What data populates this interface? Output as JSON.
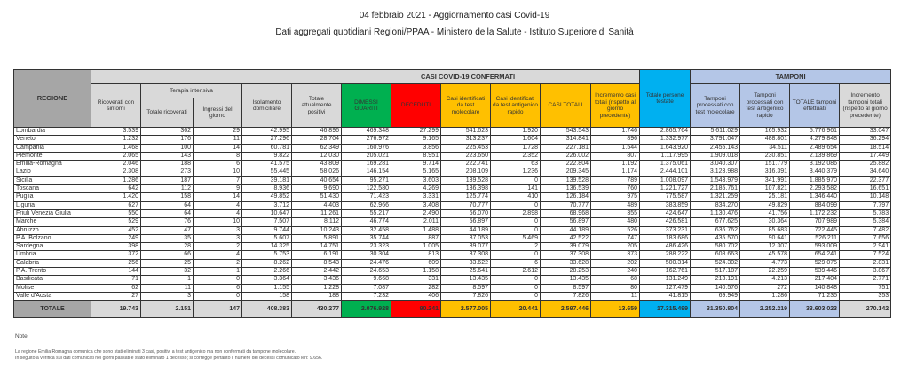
{
  "title": "04 febbraio 2021 - Aggiornamento casi Covid-19",
  "subtitle": "Dati aggregati quotidiani Regioni/PPAA - Ministero della Salute - Istituto Superiore di Sanità",
  "header": {
    "regione": "REGIONE",
    "casi_group": "CASI COVID-19 CONFERMATI",
    "tamponi_group": "TAMPONI",
    "terapia_group": "Terapia intensiva",
    "ricoverati": "Ricoverati con sintomi",
    "totale_ricoverati": "Totale ricoverati",
    "ingressi": "Ingressi del giorno",
    "isolamento": "Isolamento domiciliare",
    "totale_positivi": "Totale attualmente positivi",
    "dimessi": "DIMESSI GUARITI",
    "deceduti": "DECEDUTI",
    "casi_molecolare": "Casi identificati da test molecolare",
    "casi_antigenico": "Casi identificati da test antigenico rapido",
    "casi_totali": "CASI TOTALI",
    "incremento_casi": "Incremento casi totali (rispetto al giorno precedente)",
    "persone_testate": "Totale persone testate",
    "tamponi_molecolare": "Tamponi processati con test molecolare",
    "tamponi_antigenico": "Tamponi processati con test antigenico rapido",
    "totale_tamponi": "TOTALE tamponi effettuati",
    "incremento_tamponi": "Incremento tamponi totali (rispetto al giorno precedente)"
  },
  "rows": [
    [
      "Lombardia",
      "3.539",
      "362",
      "29",
      "42.995",
      "46.896",
      "469.348",
      "27.299",
      "541.623",
      "1.920",
      "543.543",
      "1.746",
      "2.865.764",
      "5.611.029",
      "165.932",
      "5.776.961",
      "33.047"
    ],
    [
      "Veneto",
      "1.232",
      "176",
      "11",
      "27.296",
      "28.704",
      "276.972",
      "9.165",
      "313.237",
      "1.604",
      "314.841",
      "896",
      "1.332.977",
      "3.791.047",
      "488.801",
      "4.279.848",
      "36.294"
    ],
    [
      "Campania",
      "1.468",
      "100",
      "14",
      "60.781",
      "62.349",
      "160.976",
      "3.856",
      "225.453",
      "1.728",
      "227.181",
      "1.544",
      "1.643.920",
      "2.455.143",
      "34.511",
      "2.489.654",
      "18.514"
    ],
    [
      "Piemonte",
      "2.065",
      "143",
      "8",
      "9.822",
      "12.030",
      "205.021",
      "8.951",
      "223.650",
      "2.352",
      "226.002",
      "807",
      "1.117.995",
      "1.909.018",
      "230.851",
      "2.139.869",
      "17.449"
    ],
    [
      "Emilia-Romagna",
      "2.046",
      "188",
      "6",
      "41.575",
      "43.809",
      "169.281",
      "9.714",
      "222.741",
      "63",
      "222.804",
      "1.192",
      "1.375.061",
      "3.040.307",
      "151.779",
      "3.192.086",
      "25.882"
    ],
    [
      "Lazio",
      "2.308",
      "273",
      "10",
      "55.445",
      "58.026",
      "146.154",
      "5.165",
      "208.109",
      "1.236",
      "209.345",
      "1.174",
      "2.444.101",
      "3.123.988",
      "316.391",
      "3.440.379",
      "34.640"
    ],
    [
      "Sicilia",
      "1.286",
      "187",
      "7",
      "39.181",
      "40.654",
      "95.271",
      "3.603",
      "139.528",
      "0",
      "139.528",
      "789",
      "1.008.097",
      "1.543.979",
      "341.991",
      "1.885.970",
      "22.377"
    ],
    [
      "Toscana",
      "642",
      "112",
      "9",
      "8.936",
      "9.690",
      "122.580",
      "4.269",
      "136.398",
      "141",
      "136.539",
      "760",
      "1.221.727",
      "2.185.761",
      "107.821",
      "2.293.582",
      "16.651"
    ],
    [
      "Puglia",
      "1.420",
      "158",
      "14",
      "49.852",
      "51.430",
      "71.423",
      "3.331",
      "125.774",
      "410",
      "126.184",
      "975",
      "775.587",
      "1.321.259",
      "25.181",
      "1.346.440",
      "10.148"
    ],
    [
      "Liguria",
      "627",
      "64",
      "4",
      "3.712",
      "4.403",
      "62.966",
      "3.408",
      "70.777",
      "0",
      "70.777",
      "489",
      "383.859",
      "834.270",
      "49.829",
      "884.099",
      "7.797"
    ],
    [
      "Friuli Venezia Giulia",
      "550",
      "64",
      "4",
      "10.647",
      "11.261",
      "55.217",
      "2.490",
      "66.070",
      "2.898",
      "68.968",
      "355",
      "424.647",
      "1.130.476",
      "41.756",
      "1.172.232",
      "5.783"
    ],
    [
      "Marche",
      "529",
      "76",
      "10",
      "7.507",
      "8.112",
      "46.774",
      "2.011",
      "56.897",
      "0",
      "56.897",
      "480",
      "426.581",
      "677.625",
      "30.364",
      "707.989",
      "5.384"
    ],
    [
      "Abruzzo",
      "452",
      "47",
      "3",
      "9.744",
      "10.243",
      "32.458",
      "1.488",
      "44.189",
      "0",
      "44.189",
      "526",
      "373.231",
      "636.762",
      "85.683",
      "722.445",
      "7.482"
    ],
    [
      "P.A. Bolzano",
      "249",
      "35",
      "3",
      "5.607",
      "5.891",
      "35.744",
      "887",
      "37.053",
      "5.469",
      "42.522",
      "747",
      "183.686",
      "435.570",
      "90.641",
      "526.211",
      "7.656"
    ],
    [
      "Sardegna",
      "398",
      "28",
      "2",
      "14.325",
      "14.751",
      "23.323",
      "1.005",
      "39.077",
      "2",
      "39.079",
      "205",
      "486.426",
      "580.702",
      "12.307",
      "593.009",
      "2.941"
    ],
    [
      "Umbria",
      "372",
      "66",
      "4",
      "5.753",
      "6.191",
      "30.304",
      "813",
      "37.308",
      "0",
      "37.308",
      "373",
      "288.222",
      "608.663",
      "45.578",
      "654.241",
      "7.524"
    ],
    [
      "Calabria",
      "256",
      "25",
      "2",
      "8.262",
      "8.543",
      "24.476",
      "609",
      "33.622",
      "6",
      "33.628",
      "202",
      "500.314",
      "524.302",
      "4.773",
      "529.075",
      "2.831"
    ],
    [
      "P.A. Trento",
      "144",
      "32",
      "1",
      "2.266",
      "2.442",
      "24.653",
      "1.158",
      "25.641",
      "2.612",
      "28.253",
      "240",
      "162.761",
      "517.187",
      "22.259",
      "539.446",
      "3.867"
    ],
    [
      "Basilicata",
      "71",
      "1",
      "0",
      "3.364",
      "3.436",
      "9.668",
      "331",
      "13.435",
      "0",
      "13.435",
      "68",
      "131.249",
      "213.191",
      "4.213",
      "217.404",
      "2.771"
    ],
    [
      "Molise",
      "62",
      "11",
      "6",
      "1.155",
      "1.228",
      "7.087",
      "282",
      "8.597",
      "0",
      "8.597",
      "80",
      "127.479",
      "140.576",
      "272",
      "140.848",
      "751"
    ],
    [
      "Valle d'Aosta",
      "27",
      "3",
      "0",
      "158",
      "188",
      "7.232",
      "406",
      "7.826",
      "0",
      "7.826",
      "11",
      "41.815",
      "69.949",
      "1.286",
      "71.235",
      "353"
    ]
  ],
  "totals": [
    "TOTALE",
    "19.743",
    "2.151",
    "147",
    "408.383",
    "430.277",
    "2.076.928",
    "90.241",
    "2.577.005",
    "20.441",
    "2.597.446",
    "13.659",
    "17.315.499",
    "31.350.804",
    "2.252.219",
    "33.603.023",
    "270.142"
  ],
  "colors": {
    "guariti": "#00b050",
    "deceduti": "#ff0000",
    "casi": "#ffc000",
    "testate": "#00b0f0",
    "tamponi": "#b4c6e7",
    "header_gray": "#a6a6a6"
  },
  "notes": {
    "label": "Note:",
    "line1": "La regione Emilia Romagna comunica che sono stati eliminati 3 casi, positivi a test antigenico ma non confermati da tampone molecolare.",
    "line2": "In seguito a verifica sui dati comunicati nei giorni passati è stato eliminato 1 decesso; si corregge pertanto il numero dei decessi comunicato ieri: 9.656."
  }
}
